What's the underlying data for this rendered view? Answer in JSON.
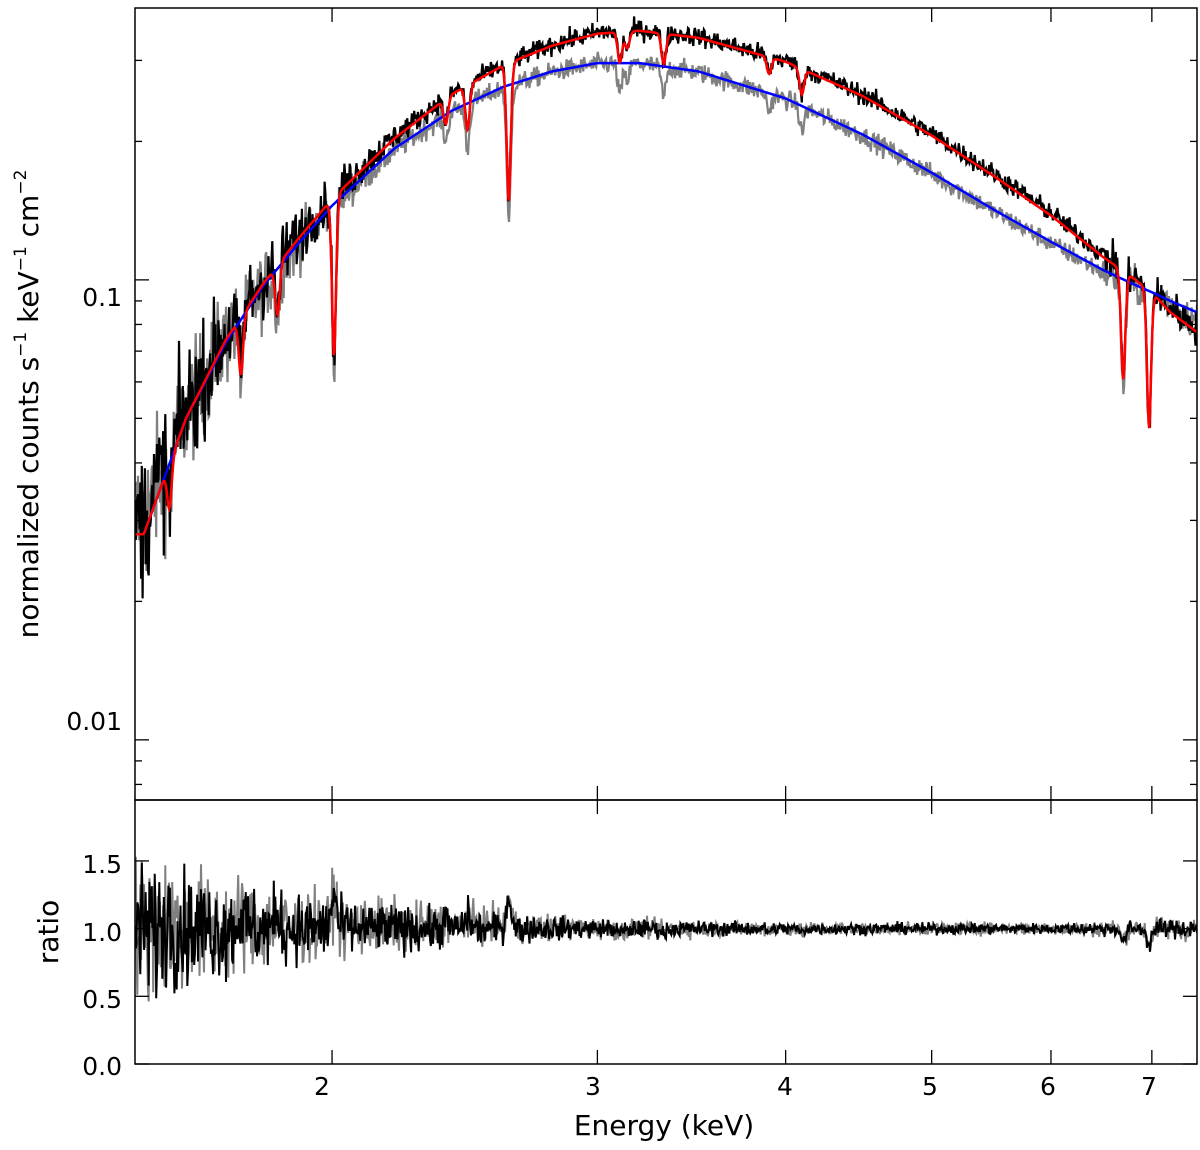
{
  "chart_data": [
    {
      "type": "line",
      "panel": "top",
      "title": "",
      "xlabel": "Energy (keV)",
      "ylabel_main": "normalized counts s",
      "ylabel_sup1": "−1",
      "ylabel_mid": " keV",
      "ylabel_sup2": "−1",
      "ylabel_end": " cm",
      "ylabel_sup3": "−2",
      "xscale": "log",
      "yscale": "log",
      "xlim": [
        1.48,
        7.5
      ],
      "ylim": [
        0.0074,
        0.39
      ],
      "x_ticks": [
        2,
        3,
        4,
        5,
        6,
        7
      ],
      "y_ticks": [
        0.01,
        0.1
      ],
      "y_tick_labels": [
        "0.01",
        "0.1"
      ],
      "grid": false,
      "legend": "none",
      "series": [
        {
          "name": "data (grey)",
          "color": "#808080",
          "x": [
            1.5,
            1.6,
            1.7,
            1.8,
            1.9,
            2.0,
            2.2,
            2.4,
            2.6,
            2.8,
            3.0,
            3.2,
            3.5,
            4.0,
            4.5,
            5.0,
            5.5,
            6.0,
            6.5,
            6.8,
            7.0,
            7.2,
            7.5
          ],
          "y": [
            0.03,
            0.051,
            0.074,
            0.096,
            0.12,
            0.145,
            0.192,
            0.232,
            0.262,
            0.283,
            0.295,
            0.295,
            0.283,
            0.247,
            0.206,
            0.17,
            0.141,
            0.12,
            0.104,
            0.097,
            0.094,
            0.089,
            0.081
          ]
        },
        {
          "name": "data (black)",
          "color": "#000000",
          "x": [
            1.5,
            1.6,
            1.7,
            1.8,
            1.9,
            2.0,
            2.2,
            2.4,
            2.6,
            2.8,
            3.0,
            3.2,
            3.5,
            4.0,
            4.5,
            5.0,
            5.5,
            6.0,
            6.5,
            6.8,
            7.0,
            7.2,
            7.5
          ],
          "y": [
            0.03,
            0.052,
            0.076,
            0.1,
            0.125,
            0.152,
            0.205,
            0.255,
            0.295,
            0.325,
            0.345,
            0.35,
            0.338,
            0.3,
            0.253,
            0.208,
            0.17,
            0.14,
            0.113,
            0.102,
            0.095,
            0.087,
            0.079
          ]
        },
        {
          "name": "model (blue)",
          "color": "#0000ff",
          "x": [
            1.5,
            1.6,
            1.7,
            1.8,
            1.9,
            2.0,
            2.2,
            2.4,
            2.6,
            2.8,
            3.0,
            3.2,
            3.5,
            4.0,
            4.5,
            5.0,
            5.5,
            6.0,
            6.5,
            6.8,
            7.0,
            7.2,
            7.5
          ],
          "y": [
            0.028,
            0.05,
            0.073,
            0.097,
            0.12,
            0.145,
            0.193,
            0.233,
            0.263,
            0.284,
            0.296,
            0.296,
            0.284,
            0.248,
            0.207,
            0.171,
            0.142,
            0.121,
            0.105,
            0.098,
            0.094,
            0.09,
            0.085
          ]
        },
        {
          "name": "model (red)",
          "color": "#ff0000",
          "x": [
            1.5,
            1.6,
            1.7,
            1.8,
            1.9,
            2.0,
            2.2,
            2.4,
            2.6,
            2.8,
            3.0,
            3.2,
            3.5,
            4.0,
            4.5,
            5.0,
            5.5,
            6.0,
            6.5,
            6.8,
            7.0,
            7.2,
            7.5
          ],
          "y": [
            0.028,
            0.05,
            0.074,
            0.098,
            0.123,
            0.15,
            0.203,
            0.253,
            0.293,
            0.323,
            0.343,
            0.348,
            0.336,
            0.298,
            0.251,
            0.206,
            0.168,
            0.138,
            0.112,
            0.101,
            0.094,
            0.085,
            0.077
          ]
        }
      ],
      "absorption_lines": [
        {
          "energy": 1.56,
          "depth": 0.2
        },
        {
          "energy": 1.74,
          "depth": 0.25
        },
        {
          "energy": 1.84,
          "depth": 0.22
        },
        {
          "energy": 2.006,
          "depth": 0.55
        },
        {
          "energy": 2.38,
          "depth": 0.12
        },
        {
          "energy": 2.46,
          "depth": 0.2
        },
        {
          "energy": 2.62,
          "depth": 0.5
        },
        {
          "energy": 3.105,
          "depth": 0.14
        },
        {
          "energy": 3.14,
          "depth": 0.08
        },
        {
          "energy": 3.32,
          "depth": 0.14
        },
        {
          "energy": 3.9,
          "depth": 0.08
        },
        {
          "energy": 4.1,
          "depth": 0.12
        },
        {
          "energy": 6.7,
          "depth": 0.42
        },
        {
          "energy": 6.97,
          "depth": 0.5
        }
      ]
    },
    {
      "type": "line",
      "panel": "bottom",
      "title": "",
      "xlabel": "Energy (keV)",
      "ylabel": "ratio",
      "xscale": "log",
      "yscale": "linear",
      "xlim": [
        1.48,
        7.5
      ],
      "ylim": [
        0.0,
        1.95
      ],
      "x_ticks": [
        2,
        3,
        4,
        5,
        6,
        7
      ],
      "x_tick_labels": [
        "2",
        "3",
        "4",
        "5",
        "6",
        "7"
      ],
      "y_ticks": [
        0.0,
        0.5,
        1.0,
        1.5
      ],
      "y_tick_labels": [
        "0.0",
        "0.5",
        "1.0",
        "1.5"
      ],
      "grid": false,
      "legend": "none",
      "series": [
        {
          "name": "ratio (grey)",
          "color": "#808080",
          "x": [
            1.5,
            1.75,
            2.0,
            2.5,
            3.0,
            4.0,
            5.0,
            6.0,
            7.0,
            7.5
          ],
          "y": [
            1.0,
            1.0,
            1.02,
            1.02,
            1.0,
            1.0,
            1.0,
            1.0,
            1.0,
            1.0
          ],
          "noise_amplitude": [
            0.7,
            0.45,
            0.3,
            0.18,
            0.1,
            0.07,
            0.06,
            0.06,
            0.1,
            0.12
          ]
        },
        {
          "name": "ratio (black)",
          "color": "#000000",
          "x": [
            1.5,
            1.75,
            2.0,
            2.5,
            3.0,
            4.0,
            5.0,
            6.0,
            7.0,
            7.5
          ],
          "y": [
            1.0,
            1.0,
            1.0,
            1.0,
            1.0,
            1.0,
            1.0,
            1.0,
            1.0,
            1.0
          ],
          "noise_amplitude": [
            0.6,
            0.4,
            0.27,
            0.16,
            0.09,
            0.06,
            0.05,
            0.05,
            0.08,
            0.1
          ]
        }
      ]
    }
  ]
}
